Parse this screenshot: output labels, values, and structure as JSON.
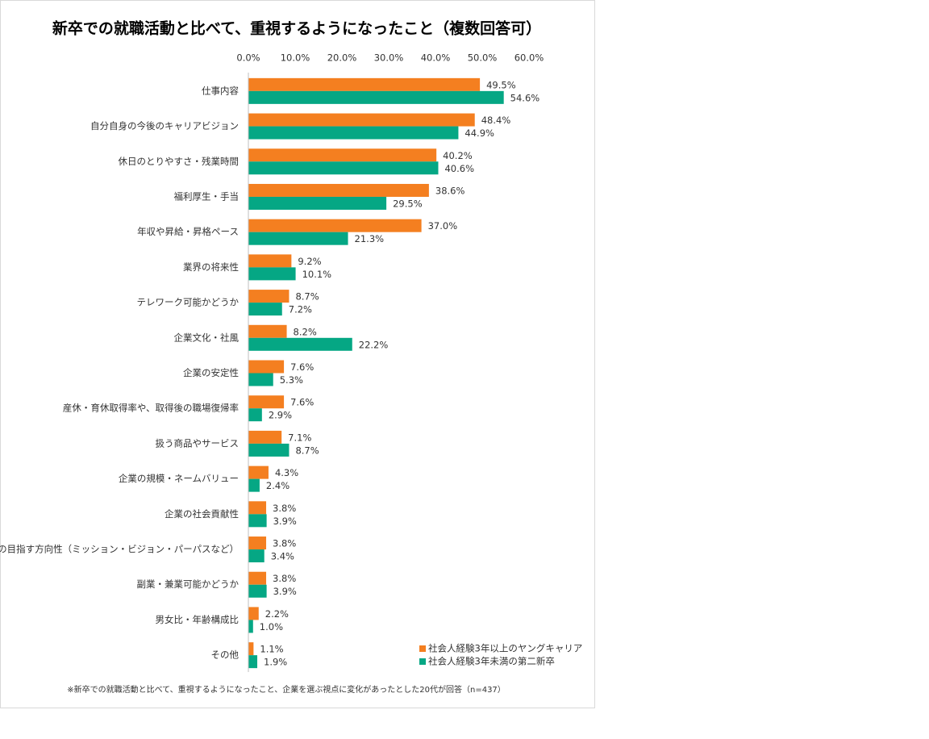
{
  "chart_data": {
    "type": "bar",
    "orientation": "horizontal",
    "title": "新卒での就職活動と比べて、重視するようになったこと（複数回答可）",
    "footnote": "※新卒での就職活動と比べて、重視するようになったこと、企業を選ぶ視点に変化があったとした20代が回答（n=437）",
    "categories": [
      "仕事内容",
      "自分自身の今後のキャリアビジョン",
      "休日のとりやすさ・残業時間",
      "福利厚生・手当",
      "年収や昇給・昇格ペース",
      "業界の将来性",
      "テレワーク可能かどうか",
      "企業文化・社風",
      "企業の安定性",
      "産休・育休取得率や、取得後の職場復帰率",
      "扱う商品やサービス",
      "企業の規模・ネームバリュー",
      "企業の社会貢献性",
      "企業の目指す方向性（ミッション・ビジョン・パーパスなど）",
      "副業・兼業可能かどうか",
      "男女比・年齢構成比",
      "その他"
    ],
    "series": [
      {
        "name": "社会人経験3年以上のヤングキャリア",
        "color": "#f47f20",
        "values": [
          49.5,
          48.4,
          40.2,
          38.6,
          37.0,
          9.2,
          8.7,
          8.2,
          7.6,
          7.6,
          7.1,
          4.3,
          3.8,
          3.8,
          3.8,
          2.2,
          1.1
        ],
        "value_labels": [
          "49.5%",
          "48.4%",
          "40.2%",
          "38.6%",
          "37.0%",
          "9.2%",
          "8.7%",
          "8.2%",
          "7.6%",
          "7.6%",
          "7.1%",
          "4.3%",
          "3.8%",
          "3.8%",
          "3.8%",
          "2.2%",
          "1.1%"
        ]
      },
      {
        "name": "社会人経験3年未満の第二新卒",
        "color": "#05a784",
        "values": [
          54.6,
          44.9,
          40.6,
          29.5,
          21.3,
          10.1,
          7.2,
          22.2,
          5.3,
          2.9,
          8.7,
          2.4,
          3.9,
          3.4,
          3.9,
          1.0,
          1.9
        ],
        "value_labels": [
          "54.6%",
          "44.9%",
          "40.6%",
          "29.5%",
          "21.3%",
          "10.1%",
          "7.2%",
          "22.2%",
          "5.3%",
          "2.9%",
          "8.7%",
          "2.4%",
          "3.9%",
          "3.4%",
          "3.9%",
          "1.0%",
          "1.9%"
        ]
      }
    ],
    "xlim": [
      0,
      60
    ],
    "xticks": [
      {
        "value": 0,
        "label": "0.0%"
      },
      {
        "value": 10,
        "label": "10.0%"
      },
      {
        "value": 20,
        "label": "20.0%"
      },
      {
        "value": 30,
        "label": "30.0%"
      },
      {
        "value": 40,
        "label": "40.0%"
      },
      {
        "value": 50,
        "label": "50.0%"
      },
      {
        "value": 60,
        "label": "60.0%"
      }
    ],
    "grid": false,
    "legend_position": "bottom-right"
  }
}
